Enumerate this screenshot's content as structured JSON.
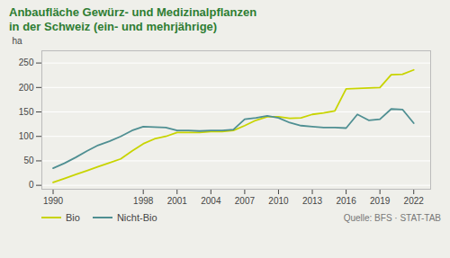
{
  "chart_data": {
    "type": "line",
    "title": "Anbaufläche Gewürz- und Medizinalpflanzen",
    "subtitle": "in der Schweiz (ein- und mehrjährige)",
    "y_label": "ha",
    "source": "Quelle: BFS · STAT-TAB",
    "x": [
      1990,
      1991,
      1992,
      1993,
      1994,
      1995,
      1996,
      1997,
      1998,
      1999,
      2000,
      2001,
      2002,
      2003,
      2004,
      2005,
      2006,
      2007,
      2008,
      2009,
      2010,
      2011,
      2012,
      2013,
      2014,
      2015,
      2016,
      2017,
      2018,
      2019,
      2020,
      2021,
      2022
    ],
    "series": [
      {
        "name": "Bio",
        "color": "#c8d400",
        "values": [
          6,
          14,
          22,
          30,
          38,
          46,
          54,
          70,
          85,
          95,
          100,
          108,
          108,
          108,
          110,
          110,
          112,
          122,
          133,
          140,
          140,
          137,
          138,
          145,
          148,
          152,
          197,
          198,
          199,
          200,
          226,
          227,
          236
        ]
      },
      {
        "name": "Nicht-Bio",
        "color": "#4f8f92",
        "values": [
          35,
          45,
          57,
          70,
          82,
          90,
          100,
          112,
          120,
          119,
          118,
          112,
          112,
          111,
          112,
          112,
          114,
          135,
          138,
          142,
          138,
          128,
          122,
          120,
          118,
          118,
          117,
          145,
          133,
          135,
          156,
          155,
          127
        ]
      }
    ],
    "xlim": [
      1989.0,
      2023.5
    ],
    "xticks": [
      1990,
      1998,
      2001,
      2004,
      2007,
      2010,
      2013,
      2016,
      2019,
      2022
    ],
    "ylim": [
      -8,
      275
    ],
    "yticks": [
      0,
      50,
      100,
      150,
      200,
      250
    ],
    "grid": true,
    "legend": "bottom"
  }
}
